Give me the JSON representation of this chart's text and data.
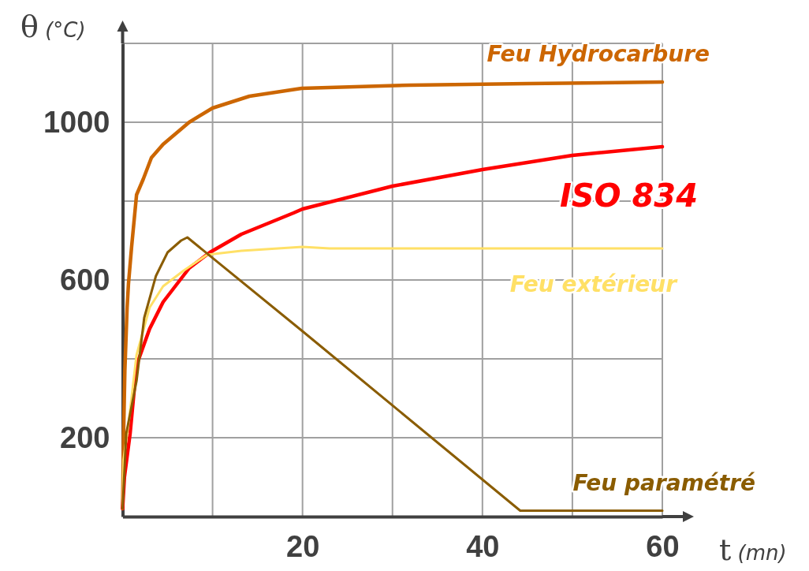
{
  "chart_data": {
    "type": "line",
    "xlabel": "t (mn)",
    "ylabel": "θ (°C)",
    "xlim": [
      0,
      60
    ],
    "ylim": [
      0,
      1200
    ],
    "xticks": [
      {
        "value": 10,
        "label": null
      },
      20,
      {
        "value": 30,
        "label": null
      },
      40,
      {
        "value": 50,
        "label": null
      },
      60
    ],
    "yticks": [
      200,
      {
        "value": 400,
        "label": null
      },
      600,
      {
        "value": 800,
        "label": null
      },
      1000,
      {
        "value": 1200,
        "label": null
      }
    ],
    "grid": true,
    "legend": false,
    "series": [
      {
        "name": "Feu Hydrocarbure",
        "color": "#cc6600",
        "x": [
          0,
          0.1,
          0.25,
          0.5,
          0.65,
          1,
          1.55,
          2.3,
          3.2,
          4.5,
          7.4,
          10,
          14.1,
          19.9,
          31.9,
          45,
          60
        ],
        "values": [
          20,
          200,
          370,
          530,
          590,
          684,
          816,
          856,
          910,
          944,
          1000,
          1036,
          1066,
          1086,
          1094,
          1098,
          1102
        ]
      },
      {
        "name": "ISO 834",
        "color": "#ff0000",
        "x": [
          0,
          0.2,
          0.83,
          1.55,
          3,
          4.5,
          7.4,
          9.7,
          13.2,
          19,
          20,
          30,
          40,
          50,
          60
        ],
        "values": [
          20,
          100,
          210,
          384,
          476,
          544,
          630,
          670,
          716,
          770,
          780,
          838,
          880,
          916,
          938
        ]
      },
      {
        "name": "Feu extérieur",
        "color": "#ffe066",
        "x": [
          0,
          0.1,
          0.7,
          1.55,
          3,
          4.5,
          6.8,
          9.4,
          13.2,
          20,
          23,
          60
        ],
        "values": [
          20,
          144,
          244,
          410,
          530,
          584,
          624,
          664,
          674,
          684,
          680,
          680
        ]
      },
      {
        "name": "Feu paramétré",
        "color": "#8a5c00",
        "x": [
          0,
          0.4,
          1.55,
          2.4,
          3.7,
          5,
          6.5,
          7.2,
          20,
          44.2,
          60
        ],
        "values": [
          20,
          210,
          344,
          504,
          610,
          670,
          700,
          708,
          470,
          15,
          15
        ]
      }
    ]
  }
}
